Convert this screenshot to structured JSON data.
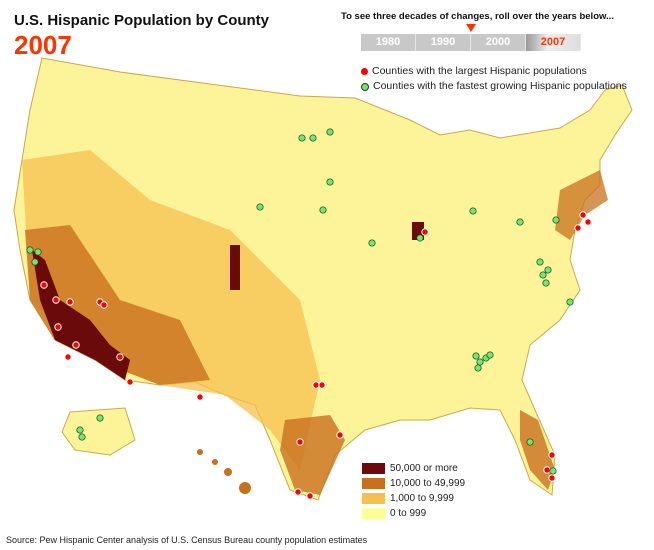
{
  "header": {
    "title": "U.S. Hispanic Population by County",
    "year": "2007",
    "hint": "To see three decades of changes, roll over the years below...",
    "years": [
      "1980",
      "1990",
      "2000",
      "2007"
    ],
    "active_year": "2007"
  },
  "dot_legend": [
    {
      "label": "Counties with the largest Hispanic populations",
      "color": "#ff0000"
    },
    {
      "label": "Counties with the fastest growing Hispanic populations",
      "color": "#66ee66"
    }
  ],
  "legend": [
    {
      "label": "50,000 or more",
      "color": "#6b0a0a"
    },
    {
      "label": "10,000 to 49,999",
      "color": "#c8701e"
    },
    {
      "label": "1,000 to 9,999",
      "color": "#f5c04e"
    },
    {
      "label": "0 to 999",
      "color": "#fdfd9c"
    }
  ],
  "source": "Source: Pew Hispanic Center analysis of U.S. Census Bureau county population estimates"
}
